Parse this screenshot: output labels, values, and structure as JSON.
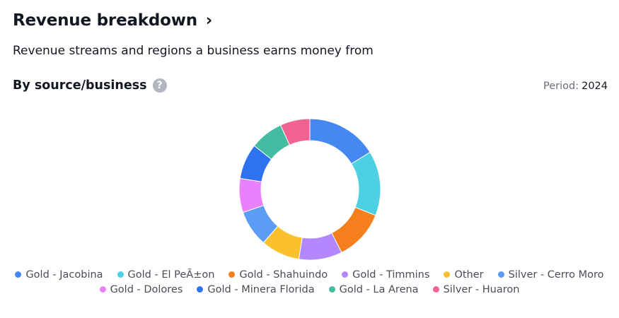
{
  "header": {
    "title": "Revenue breakdown",
    "title_chevron": "›",
    "subtitle": "Revenue streams and regions a business earns money from"
  },
  "section": {
    "title": "By source/business",
    "help_icon": "?"
  },
  "period": {
    "label": "Period:",
    "value": "2024"
  },
  "legend_rows": [
    [
      0,
      1,
      2,
      3,
      4,
      5
    ],
    [
      6,
      7,
      8,
      9
    ]
  ],
  "chart_data": {
    "type": "pie",
    "donut": true,
    "title": "",
    "categories": [
      "Gold - Jacobina",
      "Gold - El PeÃ±on",
      "Gold - Shahuindo",
      "Gold - Timmins",
      "Other",
      "Silver - Cerro Moro",
      "Gold - Dolores",
      "Gold - Minera Florida",
      "Gold - La Arena",
      "Silver - Huaron"
    ],
    "values": [
      16.2,
      14.8,
      11.6,
      9.9,
      8.9,
      8.3,
      7.8,
      8.1,
      7.6,
      6.8
    ],
    "colors": [
      "#4688f1",
      "#4dd0e1",
      "#f57f1c",
      "#b388ff",
      "#fbc02d",
      "#5b9cf6",
      "#ea80fc",
      "#2f72ef",
      "#44bca1",
      "#f06292"
    ],
    "legend_position": "bottom"
  }
}
